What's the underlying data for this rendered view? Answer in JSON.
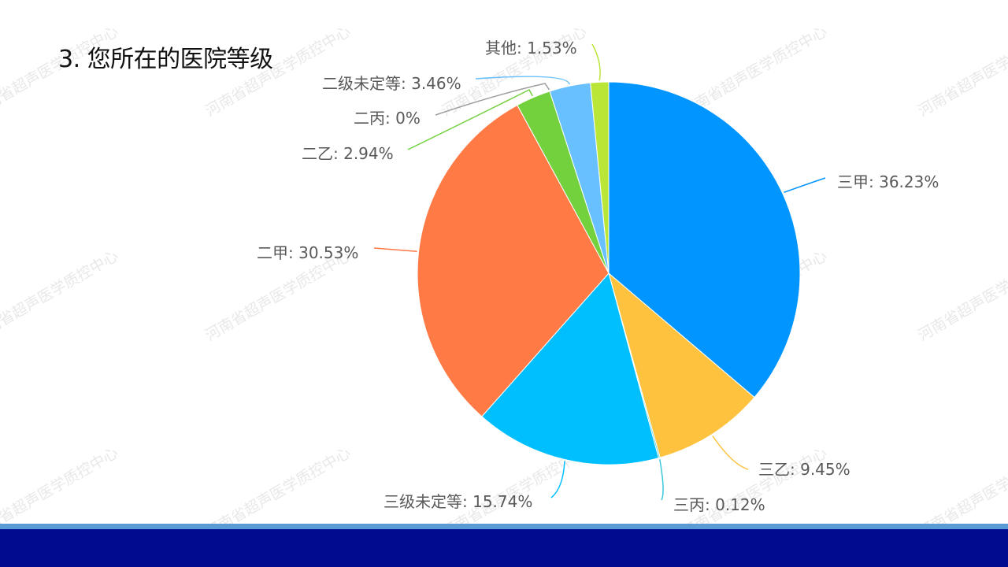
{
  "slide": {
    "title": "3. 您所在的医院等级",
    "watermark_text": "河南省超声医学质控中心"
  },
  "colors": {
    "footer_light": "#5b9bd5",
    "footer_dark": "#000b8f",
    "leader_gray": "#9e9e9e"
  },
  "chart_data": {
    "type": "pie",
    "title": "",
    "start": "12 o'clock, clockwise",
    "slices": [
      {
        "label": "三甲",
        "value": 36.23,
        "text": "三甲: 36.23%",
        "color": "#0095ff"
      },
      {
        "label": "三乙",
        "value": 9.45,
        "text": "三乙: 9.45%",
        "color": "#ffc23f"
      },
      {
        "label": "三丙",
        "value": 0.12,
        "text": "三丙: 0.12%",
        "color": "#3bc7d9"
      },
      {
        "label": "三级未定等",
        "value": 15.74,
        "text": "三级未定等: 15.74%",
        "color": "#00bfff"
      },
      {
        "label": "二甲",
        "value": 30.53,
        "text": "二甲: 30.53%",
        "color": "#ff7a45"
      },
      {
        "label": "二乙",
        "value": 2.94,
        "text": "二乙: 2.94%",
        "color": "#73d13d"
      },
      {
        "label": "二丙",
        "value": 0,
        "text": "二丙: 0%",
        "color": "#3d4c5c"
      },
      {
        "label": "二级未定等",
        "value": 3.46,
        "text": "二级未定等: 3.46%",
        "color": "#69c0ff"
      },
      {
        "label": "其他",
        "value": 1.53,
        "text": "其他: 1.53%",
        "color": "#bae637"
      }
    ]
  }
}
